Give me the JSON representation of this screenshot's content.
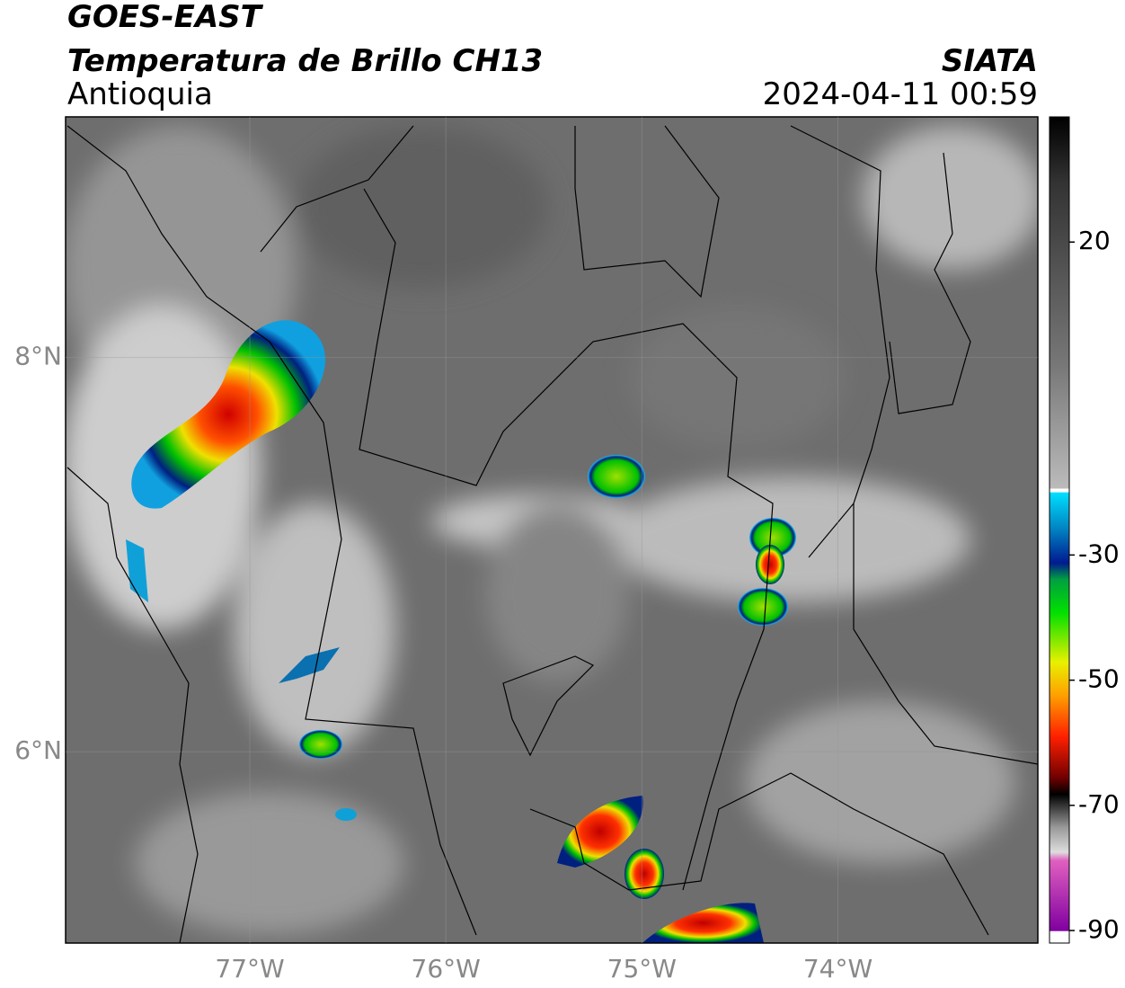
{
  "header": {
    "title": "GOES-EAST",
    "subtitle": "Temperatura de Brillo CH13",
    "region": "Antioquia",
    "source": "SIATA",
    "datetime": "2024-04-11 00:59"
  },
  "map": {
    "xlim": [
      -77.94,
      -72.98
    ],
    "ylim": [
      5.03,
      9.22
    ],
    "xticks": [
      {
        "value": -77,
        "label": "77°W"
      },
      {
        "value": -76,
        "label": "76°W"
      },
      {
        "value": -75,
        "label": "75°W"
      },
      {
        "value": -74,
        "label": "74°W"
      }
    ],
    "yticks": [
      {
        "value": 8,
        "label": "8°N"
      },
      {
        "value": 6,
        "label": "6°N"
      }
    ]
  },
  "colorbar": {
    "clim": [
      40,
      -92
    ],
    "ticks": [
      20,
      -30,
      -50,
      -70,
      -90
    ]
  }
}
